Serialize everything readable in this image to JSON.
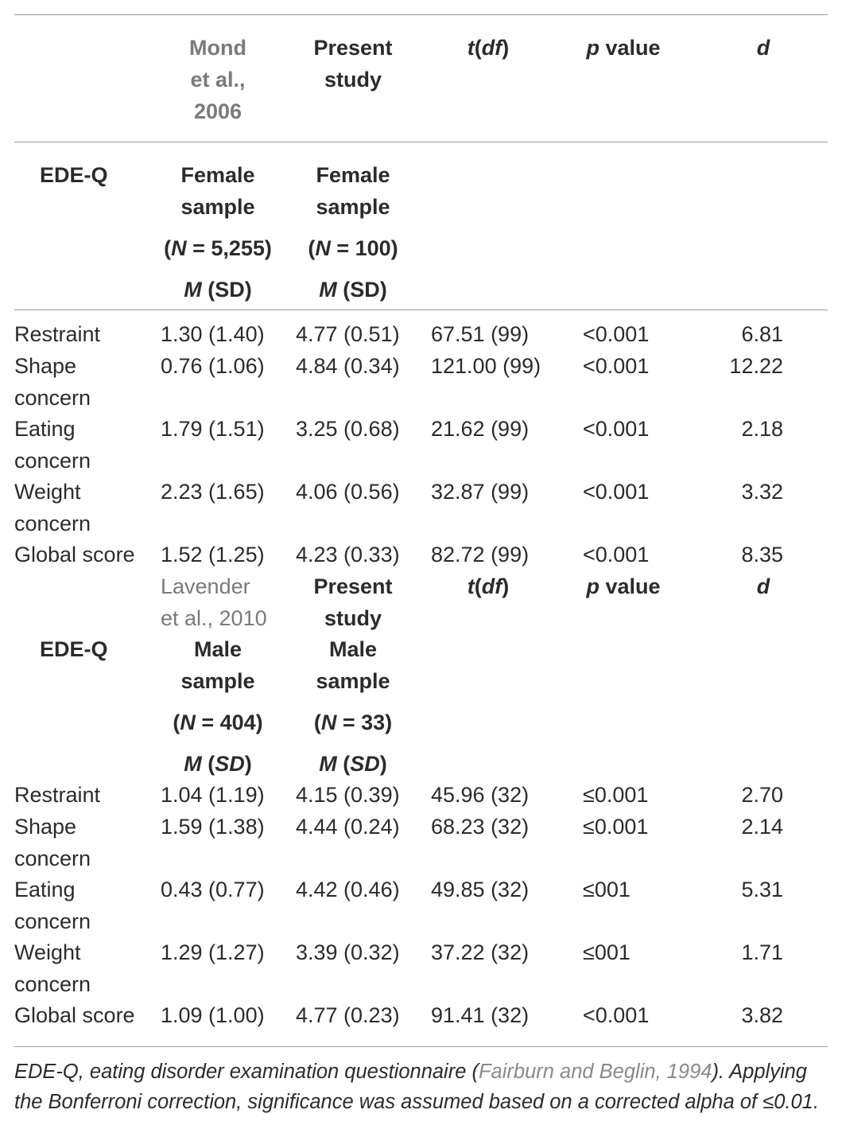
{
  "header": {
    "col_mond": "Mond et al., 2006",
    "col_mond_l1": "Mond",
    "col_mond_l2": "et al.,",
    "col_mond_l3": "2006",
    "col_present_l1": "Present",
    "col_present_l2": "study",
    "col_t_main": "t",
    "col_t_paren_open": "(",
    "col_t_df": "df",
    "col_t_paren_close": ")",
    "col_p_italic": "p",
    "col_p_rest": " value",
    "col_d": "d"
  },
  "female": {
    "edeq": "EDE-Q",
    "ref_sample_l1": "Female",
    "ref_sample_l2": "sample",
    "ref_n_open": "(",
    "ref_n_italic": "N",
    "ref_n_rest": " = 5,255)",
    "ref_m_italic": "M",
    "ref_m_rest": " (SD)",
    "present_sample_l1": "Female",
    "present_sample_l2": "sample",
    "present_n_open": "(",
    "present_n_italic": "N",
    "present_n_rest": " = 100)",
    "present_m_italic": "M",
    "present_m_rest": " (SD)",
    "rows": [
      {
        "label_l1": "Restraint",
        "label_l2": "",
        "ref": "1.30 (1.40)",
        "present": "4.77 (0.51)",
        "t": "67.51 (99)",
        "p": "<0.001",
        "d": "6.81"
      },
      {
        "label_l1": "Shape",
        "label_l2": "concern",
        "ref": "0.76 (1.06)",
        "present": "4.84 (0.34)",
        "t": "121.00 (99)",
        "p": "<0.001",
        "d": "12.22"
      },
      {
        "label_l1": "Eating",
        "label_l2": "concern",
        "ref": "1.79 (1.51)",
        "present": "3.25 (0.68)",
        "t": "21.62 (99)",
        "p": "<0.001",
        "d": "2.18"
      },
      {
        "label_l1": "Weight",
        "label_l2": "concern",
        "ref": "2.23 (1.65)",
        "present": "4.06 (0.56)",
        "t": "32.87 (99)",
        "p": "<0.001",
        "d": "3.32"
      },
      {
        "label_l1": "Global score",
        "label_l2": "",
        "ref": "1.52 (1.25)",
        "present": "4.23 (0.33)",
        "t": "82.72 (99)",
        "p": "<0.001",
        "d": "8.35"
      }
    ]
  },
  "male": {
    "ref_l1": "Lavender",
    "ref_l2": "et al., 2010",
    "present_l1": "Present",
    "present_l2": "study",
    "t_main": "t",
    "t_paren_open": "(",
    "t_df": "df",
    "t_paren_close": ")",
    "p_italic": "p",
    "p_rest": " value",
    "d": "d",
    "edeq": "EDE-Q",
    "ref_sample_l1": "Male",
    "ref_sample_l2": "sample",
    "ref_n_open": "(",
    "ref_n_italic": "N",
    "ref_n_rest": " = 404)",
    "ref_m": "M",
    "ref_sd_open": " (",
    "ref_sd": "SD",
    "ref_sd_close": ")",
    "present_sample_l1": "Male",
    "present_sample_l2": "sample",
    "present_n_open": "(",
    "present_n_italic": "N",
    "present_n_rest": " = 33)",
    "present_m": "M",
    "present_sd_open": " (",
    "present_sd": "SD",
    "present_sd_close": ")",
    "rows": [
      {
        "label_l1": "Restraint",
        "label_l2": "",
        "ref": "1.04 (1.19)",
        "present": "4.15 (0.39)",
        "t": "45.96 (32)",
        "p": "≤0.001",
        "d": "2.70"
      },
      {
        "label_l1": "Shape",
        "label_l2": "concern",
        "ref": "1.59 (1.38)",
        "present": "4.44 (0.24)",
        "t": "68.23 (32)",
        "p": "≤0.001",
        "d": "2.14"
      },
      {
        "label_l1": "Eating",
        "label_l2": "concern",
        "ref": "0.43 (0.77)",
        "present": "4.42 (0.46)",
        "t": "49.85 (32)",
        "p": "≤001",
        "d": "5.31"
      },
      {
        "label_l1": "Weight",
        "label_l2": "concern",
        "ref": "1.29 (1.27)",
        "present": "3.39 (0.32)",
        "t": "37.22 (32)",
        "p": "≤001",
        "d": "1.71"
      },
      {
        "label_l1": "Global score",
        "label_l2": "",
        "ref": "1.09 (1.00)",
        "present": "4.77 (0.23)",
        "t": "91.41 (32)",
        "p": "<0.001",
        "d": "3.82"
      }
    ]
  },
  "footnote": {
    "part1": "EDE-Q, eating disorder examination questionnaire (",
    "link": "Fairburn and Beglin, 1994",
    "part2": "). Applying the Bonferroni correction, significance was assumed based on a corrected alpha of ≤0.01."
  }
}
